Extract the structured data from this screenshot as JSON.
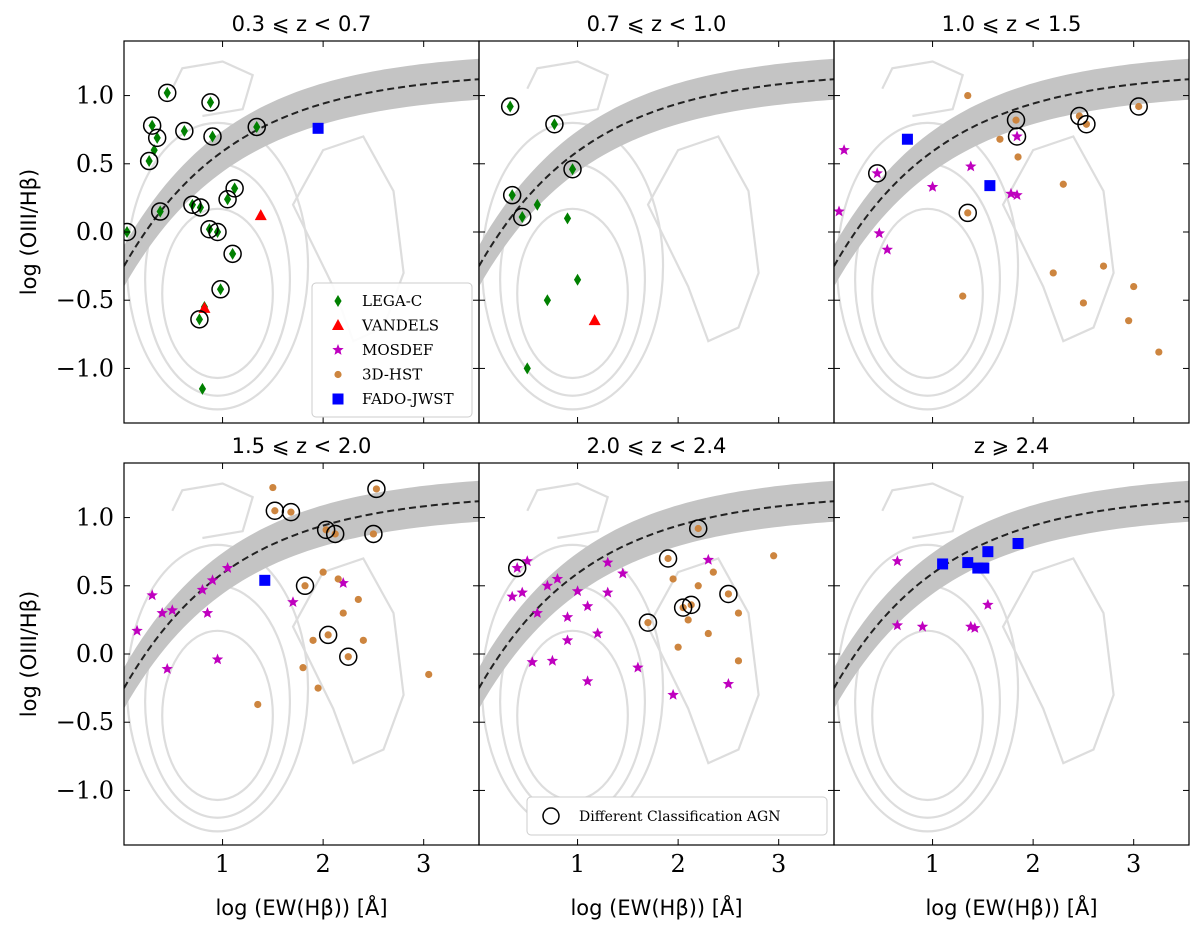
{
  "chart_data": {
    "type": "scatter",
    "description_free": true,
    "xlabel": "log (EW(Hβ)) [Å]",
    "ylabel": "log (OIII/Hβ)",
    "xlim": [
      0.02,
      3.55
    ],
    "ylim": [
      -1.4,
      1.4
    ],
    "xticks": [
      1,
      2,
      3
    ],
    "xtick_labels": [
      "1",
      "2",
      "3"
    ],
    "yticks": [
      1.0,
      0.5,
      0.0,
      -0.5,
      -1.0
    ],
    "ytick_labels": [
      "1.0",
      "0.5",
      "0.0",
      "−0.5",
      "−1.0"
    ],
    "colors": {
      "LEGA-C": "#008000",
      "VANDELS": "#ff0000",
      "MOSDEF": "#bf00bf",
      "3D-HST": "#cd853f",
      "FADO-JWST": "#0000ff",
      "band": "#c4c4c4",
      "contour": "#dddddd"
    },
    "legend": [
      {
        "name": "LEGA-C",
        "marker": "diamond"
      },
      {
        "name": "VANDELS",
        "marker": "triangle"
      },
      {
        "name": "MOSDEF",
        "marker": "star"
      },
      {
        "name": "3D-HST",
        "marker": "circle"
      },
      {
        "name": "FADO-JWST",
        "marker": "square"
      }
    ],
    "legend2": "Different Classification AGN",
    "demarcation": {
      "style": "dashed",
      "y_range": [
        -0.25,
        1.12
      ],
      "band_width": 0.15
    },
    "panels": [
      {
        "title": "0.3 ⩽ z < 0.7",
        "show_ylabels": true,
        "show_xlabels": false,
        "legend": "main",
        "series": {
          "LEGA-C": [
            [
              0.45,
              1.02
            ],
            [
              0.88,
              0.95
            ],
            [
              0.3,
              0.78
            ],
            [
              0.62,
              0.74
            ],
            [
              0.9,
              0.7
            ],
            [
              0.35,
              0.69
            ],
            [
              1.34,
              0.77
            ],
            [
              0.27,
              0.52
            ],
            [
              0.32,
              0.6
            ],
            [
              1.12,
              0.32
            ],
            [
              0.38,
              0.15
            ],
            [
              0.7,
              0.2
            ],
            [
              0.78,
              0.18
            ],
            [
              1.05,
              0.24
            ],
            [
              0.05,
              0.0
            ],
            [
              0.87,
              0.02
            ],
            [
              0.95,
              0.0
            ],
            [
              1.1,
              -0.16
            ],
            [
              0.98,
              -0.42
            ],
            [
              0.82,
              -0.55
            ],
            [
              0.77,
              -0.64
            ],
            [
              0.8,
              -1.15
            ]
          ],
          "VANDELS": [
            [
              1.38,
              0.12
            ],
            [
              0.82,
              -0.56
            ]
          ],
          "FADO-JWST": [
            [
              1.95,
              0.76
            ]
          ]
        },
        "circles": [
          [
            0.45,
            1.02
          ],
          [
            0.88,
            0.95
          ],
          [
            0.3,
            0.78
          ],
          [
            0.62,
            0.74
          ],
          [
            0.9,
            0.7
          ],
          [
            0.35,
            0.69
          ],
          [
            1.34,
            0.77
          ],
          [
            0.27,
            0.52
          ],
          [
            1.12,
            0.32
          ],
          [
            0.38,
            0.15
          ],
          [
            0.7,
            0.2
          ],
          [
            0.78,
            0.18
          ],
          [
            1.05,
            0.24
          ],
          [
            0.05,
            0.0
          ],
          [
            0.87,
            0.02
          ],
          [
            0.95,
            0.0
          ],
          [
            1.1,
            -0.16
          ],
          [
            0.98,
            -0.42
          ],
          [
            0.77,
            -0.64
          ]
        ]
      },
      {
        "title": "0.7 ⩽ z < 1.0",
        "show_ylabels": false,
        "show_xlabels": false,
        "legend": "none",
        "series": {
          "LEGA-C": [
            [
              0.33,
              0.92
            ],
            [
              0.77,
              0.79
            ],
            [
              0.95,
              0.46
            ],
            [
              0.35,
              0.27
            ],
            [
              0.45,
              0.11
            ],
            [
              0.6,
              0.2
            ],
            [
              0.9,
              0.1
            ],
            [
              1.0,
              -0.35
            ],
            [
              0.7,
              -0.5
            ],
            [
              0.5,
              -1.0
            ]
          ],
          "VANDELS": [
            [
              1.17,
              -0.65
            ]
          ]
        },
        "circles": [
          [
            0.33,
            0.92
          ],
          [
            0.77,
            0.79
          ],
          [
            0.95,
            0.46
          ],
          [
            0.35,
            0.27
          ],
          [
            0.45,
            0.11
          ]
        ]
      },
      {
        "title": "1.0 ⩽ z < 1.5",
        "show_ylabels": false,
        "show_xlabels": false,
        "legend": "none",
        "series": {
          "MOSDEF": [
            [
              0.12,
              0.6
            ],
            [
              0.07,
              0.15
            ],
            [
              0.45,
              0.43
            ],
            [
              1.0,
              0.33
            ],
            [
              1.38,
              0.48
            ],
            [
              1.84,
              0.7
            ],
            [
              0.47,
              -0.01
            ],
            [
              0.55,
              -0.13
            ],
            [
              1.78,
              0.28
            ],
            [
              1.84,
              0.27
            ]
          ],
          "3D-HST": [
            [
              1.83,
              0.82
            ],
            [
              1.67,
              0.68
            ],
            [
              1.35,
              0.14
            ],
            [
              2.46,
              0.85
            ],
            [
              2.53,
              0.79
            ],
            [
              3.05,
              0.92
            ],
            [
              1.35,
              1.0
            ],
            [
              1.85,
              0.55
            ],
            [
              2.3,
              0.35
            ],
            [
              2.2,
              -0.3
            ],
            [
              2.5,
              -0.52
            ],
            [
              2.95,
              -0.65
            ],
            [
              3.25,
              -0.88
            ],
            [
              1.3,
              -0.47
            ],
            [
              2.7,
              -0.25
            ],
            [
              3.0,
              -0.4
            ]
          ],
          "FADO-JWST": [
            [
              0.75,
              0.68
            ],
            [
              1.57,
              0.34
            ]
          ]
        },
        "circles": [
          [
            0.45,
            0.43
          ],
          [
            1.35,
            0.14
          ],
          [
            1.83,
            0.82
          ],
          [
            1.84,
            0.7
          ],
          [
            2.46,
            0.85
          ],
          [
            2.53,
            0.79
          ],
          [
            3.05,
            0.92
          ]
        ]
      },
      {
        "title": "1.5 ⩽ z < 2.0",
        "show_ylabels": true,
        "show_xlabels": true,
        "legend": "none",
        "series": {
          "MOSDEF": [
            [
              0.15,
              0.17
            ],
            [
              0.3,
              0.43
            ],
            [
              0.4,
              0.3
            ],
            [
              0.5,
              0.32
            ],
            [
              0.8,
              0.47
            ],
            [
              0.9,
              0.54
            ],
            [
              1.05,
              0.63
            ],
            [
              0.85,
              0.3
            ],
            [
              0.45,
              -0.11
            ],
            [
              0.95,
              -0.04
            ],
            [
              1.7,
              0.38
            ],
            [
              2.2,
              0.52
            ]
          ],
          "3D-HST": [
            [
              1.5,
              1.22
            ],
            [
              1.52,
              1.05
            ],
            [
              1.68,
              1.04
            ],
            [
              1.82,
              0.5
            ],
            [
              2.03,
              0.91
            ],
            [
              2.12,
              0.88
            ],
            [
              2.5,
              0.88
            ],
            [
              2.53,
              1.21
            ],
            [
              2.05,
              0.14
            ],
            [
              2.25,
              -0.02
            ],
            [
              1.35,
              -0.37
            ],
            [
              1.95,
              -0.25
            ],
            [
              3.05,
              -0.15
            ],
            [
              2.2,
              0.3
            ],
            [
              1.9,
              0.1
            ],
            [
              2.35,
              0.4
            ],
            [
              2.0,
              0.6
            ],
            [
              2.4,
              0.1
            ],
            [
              1.8,
              -0.1
            ],
            [
              2.15,
              0.55
            ]
          ],
          "FADO-JWST": [
            [
              1.42,
              0.54
            ]
          ]
        },
        "circles": [
          [
            1.52,
            1.05
          ],
          [
            1.68,
            1.04
          ],
          [
            1.82,
            0.5
          ],
          [
            2.03,
            0.91
          ],
          [
            2.12,
            0.88
          ],
          [
            2.5,
            0.88
          ],
          [
            2.53,
            1.21
          ],
          [
            2.05,
            0.14
          ],
          [
            2.25,
            -0.02
          ]
        ]
      },
      {
        "title": "2.0 ⩽ z < 2.4",
        "show_ylabels": false,
        "show_xlabels": true,
        "legend": "circle",
        "series": {
          "MOSDEF": [
            [
              0.4,
              0.63
            ],
            [
              0.5,
              0.68
            ],
            [
              0.35,
              0.42
            ],
            [
              0.45,
              0.45
            ],
            [
              0.6,
              0.3
            ],
            [
              0.7,
              0.5
            ],
            [
              0.8,
              0.55
            ],
            [
              0.9,
              0.27
            ],
            [
              1.0,
              0.46
            ],
            [
              1.1,
              0.35
            ],
            [
              1.3,
              0.45
            ],
            [
              1.45,
              0.59
            ],
            [
              1.2,
              0.15
            ],
            [
              0.9,
              0.1
            ],
            [
              0.55,
              -0.06
            ],
            [
              1.1,
              -0.2
            ],
            [
              1.6,
              -0.1
            ],
            [
              1.95,
              -0.3
            ],
            [
              2.5,
              -0.22
            ],
            [
              1.3,
              0.67
            ],
            [
              2.3,
              0.69
            ],
            [
              0.75,
              -0.05
            ]
          ],
          "3D-HST": [
            [
              1.9,
              0.7
            ],
            [
              2.2,
              0.92
            ],
            [
              2.5,
              0.44
            ],
            [
              2.13,
              0.36
            ],
            [
              2.05,
              0.34
            ],
            [
              1.7,
              0.23
            ],
            [
              2.2,
              0.5
            ],
            [
              2.35,
              0.6
            ],
            [
              2.0,
              0.05
            ],
            [
              2.6,
              -0.05
            ],
            [
              2.95,
              0.72
            ],
            [
              2.6,
              0.3
            ],
            [
              2.3,
              0.15
            ],
            [
              2.1,
              0.25
            ],
            [
              1.95,
              0.55
            ]
          ]
        },
        "circles": [
          [
            0.4,
            0.63
          ],
          [
            1.9,
            0.7
          ],
          [
            2.2,
            0.92
          ],
          [
            2.5,
            0.44
          ],
          [
            2.13,
            0.36
          ],
          [
            2.05,
            0.34
          ],
          [
            1.7,
            0.23
          ]
        ]
      },
      {
        "title": "z ⩾ 2.4",
        "show_ylabels": false,
        "show_xlabels": true,
        "legend": "none",
        "series": {
          "MOSDEF": [
            [
              0.65,
              0.68
            ],
            [
              0.65,
              0.21
            ],
            [
              0.9,
              0.2
            ],
            [
              1.38,
              0.2
            ],
            [
              1.42,
              0.19
            ],
            [
              1.55,
              0.36
            ]
          ],
          "FADO-JWST": [
            [
              1.1,
              0.66
            ],
            [
              1.35,
              0.67
            ],
            [
              1.45,
              0.63
            ],
            [
              1.51,
              0.63
            ],
            [
              1.55,
              0.75
            ],
            [
              1.85,
              0.81
            ]
          ]
        },
        "circles": []
      }
    ]
  }
}
